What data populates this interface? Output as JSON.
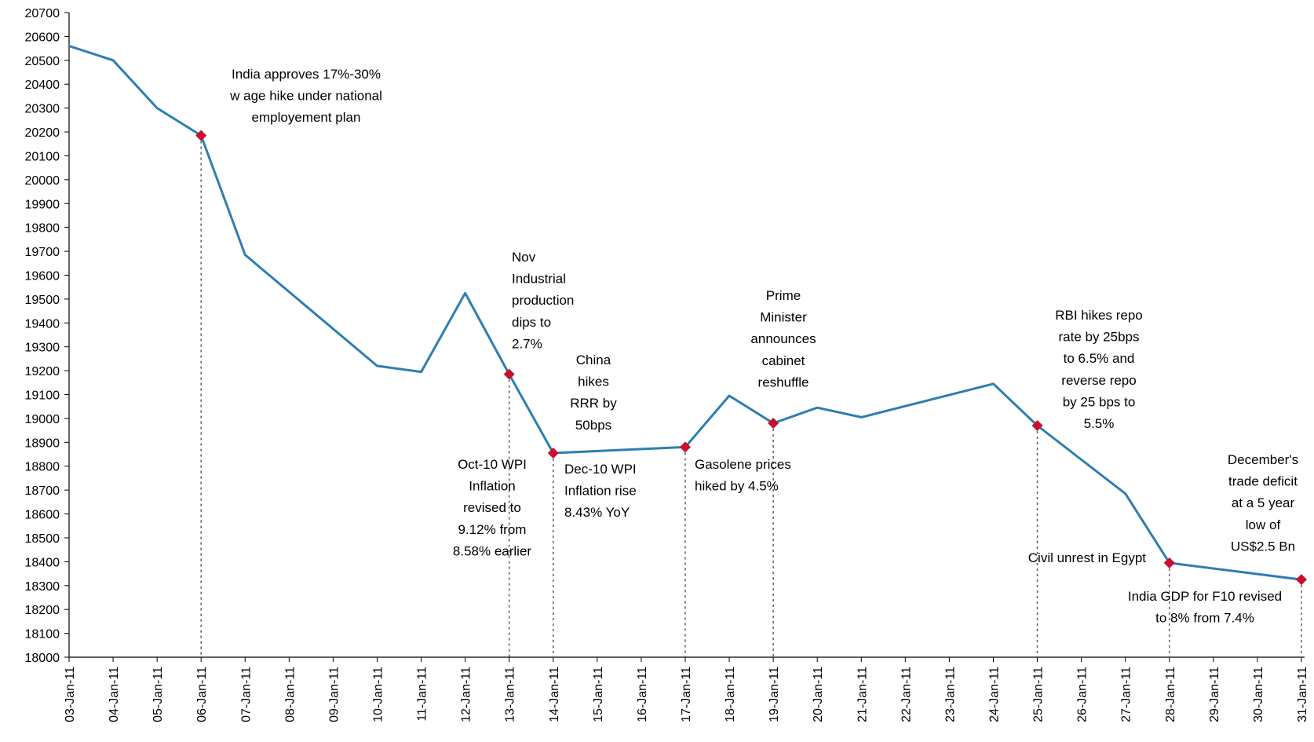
{
  "chart_data": {
    "type": "line",
    "title": "",
    "xlabel": "",
    "ylabel": "",
    "ylim": [
      18000,
      20700
    ],
    "y_ticks": [
      18000,
      18100,
      18200,
      18300,
      18400,
      18500,
      18600,
      18700,
      18800,
      18900,
      19000,
      19100,
      19200,
      19300,
      19400,
      19500,
      19600,
      19700,
      19800,
      19900,
      20000,
      20100,
      20200,
      20300,
      20400,
      20500,
      20600,
      20700
    ],
    "line_color": "#2E7EB1",
    "marker_color": "#C8102E",
    "categories": [
      "03-Jan-11",
      "04-Jan-11",
      "05-Jan-11",
      "06-Jan-11",
      "07-Jan-11",
      "08-Jan-11",
      "09-Jan-11",
      "10-Jan-11",
      "11-Jan-11",
      "12-Jan-11",
      "13-Jan-11",
      "14-Jan-11",
      "15-Jan-11",
      "16-Jan-11",
      "17-Jan-11",
      "18-Jan-11",
      "19-Jan-11",
      "20-Jan-11",
      "21-Jan-11",
      "22-Jan-11",
      "23-Jan-11",
      "24-Jan-11",
      "25-Jan-11",
      "26-Jan-11",
      "27-Jan-11",
      "28-Jan-11",
      "29-Jan-11",
      "30-Jan-11",
      "31-Jan-11"
    ],
    "series": [
      {
        "x": [
          "03-Jan-11",
          "04-Jan-11",
          "05-Jan-11",
          "06-Jan-11",
          "07-Jan-11",
          "10-Jan-11",
          "11-Jan-11",
          "12-Jan-11",
          "13-Jan-11",
          "14-Jan-11",
          "17-Jan-11",
          "18-Jan-11",
          "19-Jan-11",
          "20-Jan-11",
          "21-Jan-11",
          "24-Jan-11",
          "25-Jan-11",
          "27-Jan-11",
          "28-Jan-11",
          "31-Jan-11"
        ],
        "values": [
          20560,
          20500,
          20300,
          20185,
          19685,
          19220,
          19195,
          19525,
          19185,
          18855,
          18880,
          19095,
          18980,
          19045,
          19005,
          19145,
          18970,
          18685,
          18395,
          18325
        ]
      }
    ],
    "events": [
      {
        "date": "06-Jan-11",
        "value": 20185,
        "lines": [
          "India approves 17%-30%",
          "w age hike under national",
          "employement plan"
        ]
      },
      {
        "date": "13-Jan-11",
        "value": 19185,
        "lines": [
          "Nov",
          "Industrial",
          "production",
          "dips to",
          "2.7%"
        ]
      },
      {
        "date": "13-Jan-11",
        "value": 19185,
        "lines": [
          "Oct-10 WPI",
          "Inflation",
          "revised to",
          "9.12% from",
          "8.58% earlier"
        ]
      },
      {
        "date": "14-Jan-11",
        "value": 18855,
        "lines": [
          "China",
          "hikes",
          "RRR by",
          "50bps"
        ]
      },
      {
        "date": "14-Jan-11",
        "value": 18855,
        "lines": [
          "Dec-10 WPI",
          "Inflation rise",
          "8.43% YoY"
        ]
      },
      {
        "date": "17-Jan-11",
        "value": 18880,
        "lines": [
          "Gasolene prices",
          "hiked by 4.5%"
        ]
      },
      {
        "date": "19-Jan-11",
        "value": 18980,
        "lines": [
          "Prime",
          "Minister",
          "announces",
          "cabinet",
          "reshuffle"
        ]
      },
      {
        "date": "25-Jan-11",
        "value": 18970,
        "lines": [
          "RBI hikes repo",
          "rate by 25bps",
          "to 6.5% and",
          "reverse repo",
          "by 25 bps to",
          "5.5%"
        ]
      },
      {
        "date": "28-Jan-11",
        "value": 18395,
        "lines": [
          "Civil unrest in Egypt"
        ]
      },
      {
        "date": "28-Jan-11",
        "value": 18395,
        "lines": [
          "India GDP for F10 revised",
          "to 8% from 7.4%"
        ]
      },
      {
        "date": "31-Jan-11",
        "value": 18325,
        "lines": [
          "December's",
          "trade deficit",
          "at a 5 year",
          "low of",
          "US$2.5 Bn"
        ]
      }
    ]
  }
}
